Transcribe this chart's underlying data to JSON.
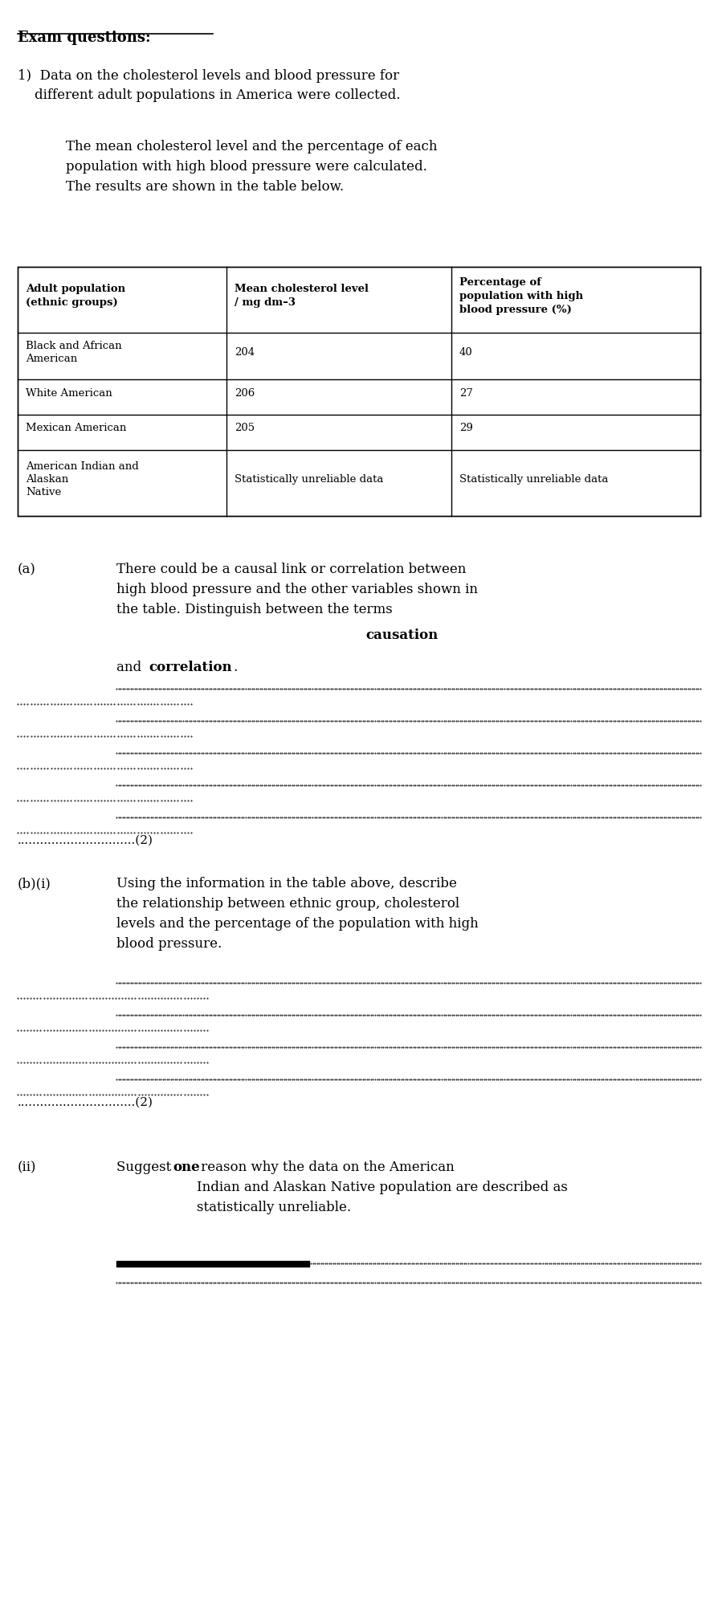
{
  "bg_color": "#ffffff",
  "text_color": "#000000",
  "title": "Exam questions:",
  "q1_text": "1)  Data on the cholesterol levels and blood pressure for\n    different adult populations in America were collected.",
  "q1_sub": "The mean cholesterol level and the percentage of each\npopulation with high blood pressure were calculated.\nThe results are shown in the table below.",
  "table_headers": [
    "Adult population\n(ethnic groups)",
    "Mean cholesterol level\n/ mg dm–3",
    "Percentage of\npopulation with high\nblood pressure (%)"
  ],
  "table_rows": [
    [
      "Black and African\nAmerican",
      "204",
      "40"
    ],
    [
      "White American",
      "206",
      "27"
    ],
    [
      "Mexican American",
      "205",
      "29"
    ],
    [
      "American Indian and\nAlaskan\nNative",
      "Statistically unreliable data",
      "Statistically unreliable data"
    ]
  ],
  "qa_label": "(a)",
  "qa_text_normal": "There could be a causal link or correlation between\nhigh blood pressure and the other variables shown in\nthe table. Distinguish between the terms ",
  "qa_text_bold1": "causation",
  "qa_text_bold2": "correlation",
  "qa_mark": "(2)",
  "qbi_label": "(b)(i)",
  "qbi_text": "Using the information in the table above, describe\nthe relationship between ethnic group, cholesterol\nlevels and the percentage of the population with high\nblood pressure.",
  "qbi_mark": "(2)",
  "qbii_label": "(ii)",
  "qbii_text_pre": "Suggest ",
  "qbii_bold": "one",
  "qbii_text_post": " reason why the data on the American\nIndian and Alaskan Native population are described as\nstatistically unreliable."
}
